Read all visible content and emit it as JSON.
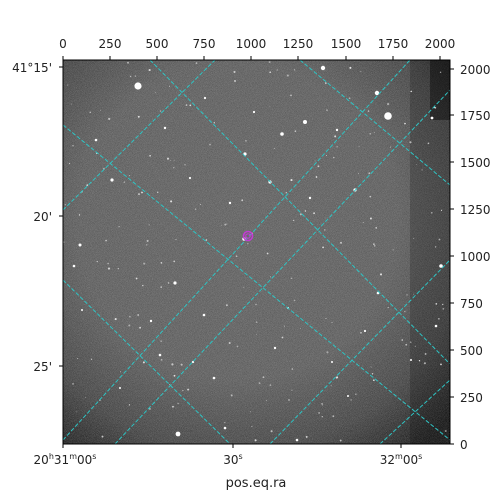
{
  "image": {
    "kind": "astronomical-sky-image",
    "colormap": "grayscale",
    "grid_color": "#2ec4c4",
    "target_marker_color": "#c23bd4",
    "background_color": "#ffffff"
  },
  "axes": {
    "xlabel": "pos.eq.ra",
    "pixel_x_ticks": [
      "0",
      "250",
      "500",
      "750",
      "1000",
      "1250",
      "1500",
      "1750",
      "2000"
    ],
    "pixel_y_ticks": [
      "0",
      "250",
      "500",
      "750",
      "1000",
      "1250",
      "1500",
      "1750",
      "2000"
    ],
    "dec_ticks": [
      {
        "main": "41°15'"
      },
      {
        "main": "20'"
      },
      {
        "main": "25'"
      }
    ],
    "ra_ticks": [
      {
        "main": "20",
        "sup1": "h",
        "mid": "31",
        "sup2": "m",
        "end": "00",
        "sup3": "s"
      },
      {
        "main": "30",
        "sup3": "s"
      },
      {
        "main": "32",
        "sup2": "m",
        "end": "00",
        "sup3": "s"
      }
    ]
  }
}
